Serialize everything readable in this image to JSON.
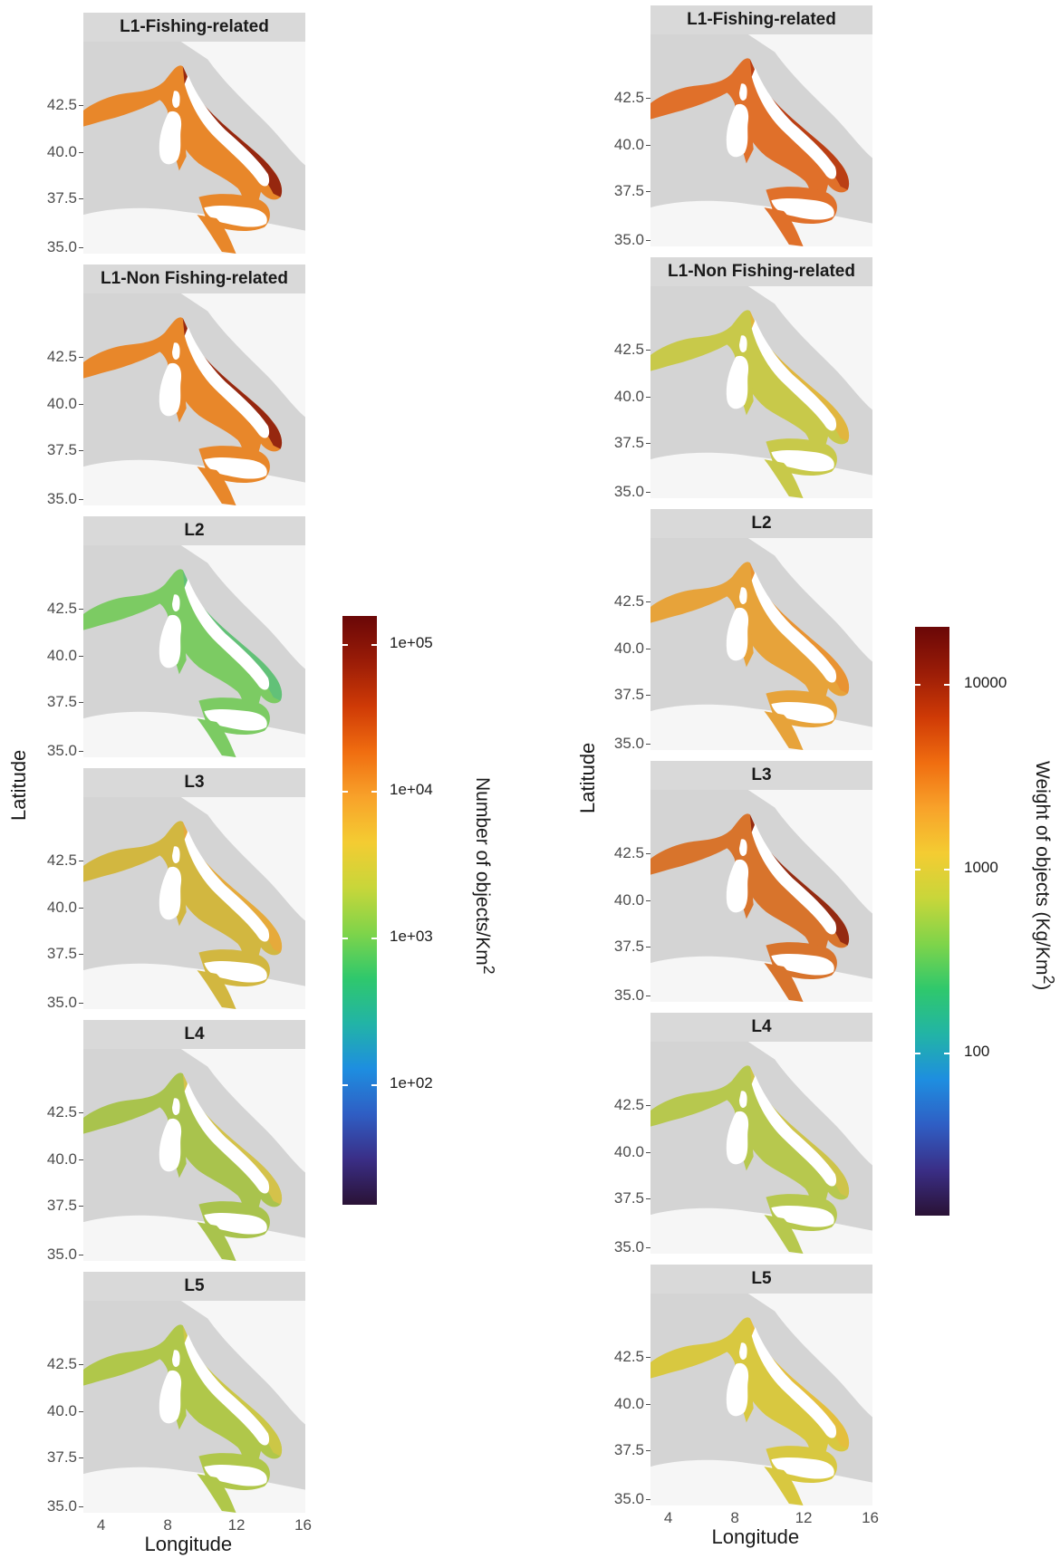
{
  "left": {
    "panels": [
      "L1-Fishing-related",
      "L1-Non Fishing-related",
      "L2",
      "L3",
      "L4",
      "L5"
    ],
    "palette": [
      "#e8872a",
      "#e8872a",
      "#7ccb63",
      "#d2b740",
      "#a9c34d",
      "#b0c74a"
    ],
    "hot": [
      "#8d1d0c",
      "#8d1d0c",
      "#5fc07a",
      "#e8a93b",
      "#d8c24a",
      "#cfc646"
    ],
    "y_ticks": [
      "42.5",
      "40.0",
      "37.5",
      "35.0"
    ],
    "x_ticks": [
      "4",
      "8",
      "12",
      "16"
    ],
    "ylabel": "Latitude",
    "xlabel": "Longitude",
    "legend": {
      "title": "Number of objects/Km",
      "title_sup": "2",
      "labels": [
        "1e+05",
        "1e+04",
        "1e+03",
        "1e+02"
      ]
    }
  },
  "right": {
    "panels": [
      "L1-Fishing-related",
      "L1-Non Fishing-related",
      "L2",
      "L3",
      "L4",
      "L5"
    ],
    "palette": [
      "#e0702a",
      "#c8c94a",
      "#e7a33a",
      "#d8742c",
      "#b7c84e",
      "#d8c840"
    ],
    "hot": [
      "#b63a12",
      "#e3b43d",
      "#e99132",
      "#8d240f",
      "#d0c34a",
      "#e5be3d"
    ],
    "y_ticks": [
      "42.5",
      "40.0",
      "37.5",
      "35.0"
    ],
    "x_ticks": [
      "4",
      "8",
      "12",
      "16"
    ],
    "ylabel": "Latitude",
    "xlabel": "Longitude",
    "legend": {
      "title": "Weight of objects (Kg/Km",
      "title_sup": "2",
      "title_end": ")",
      "labels": [
        "10000",
        "1000",
        "100"
      ]
    }
  }
}
